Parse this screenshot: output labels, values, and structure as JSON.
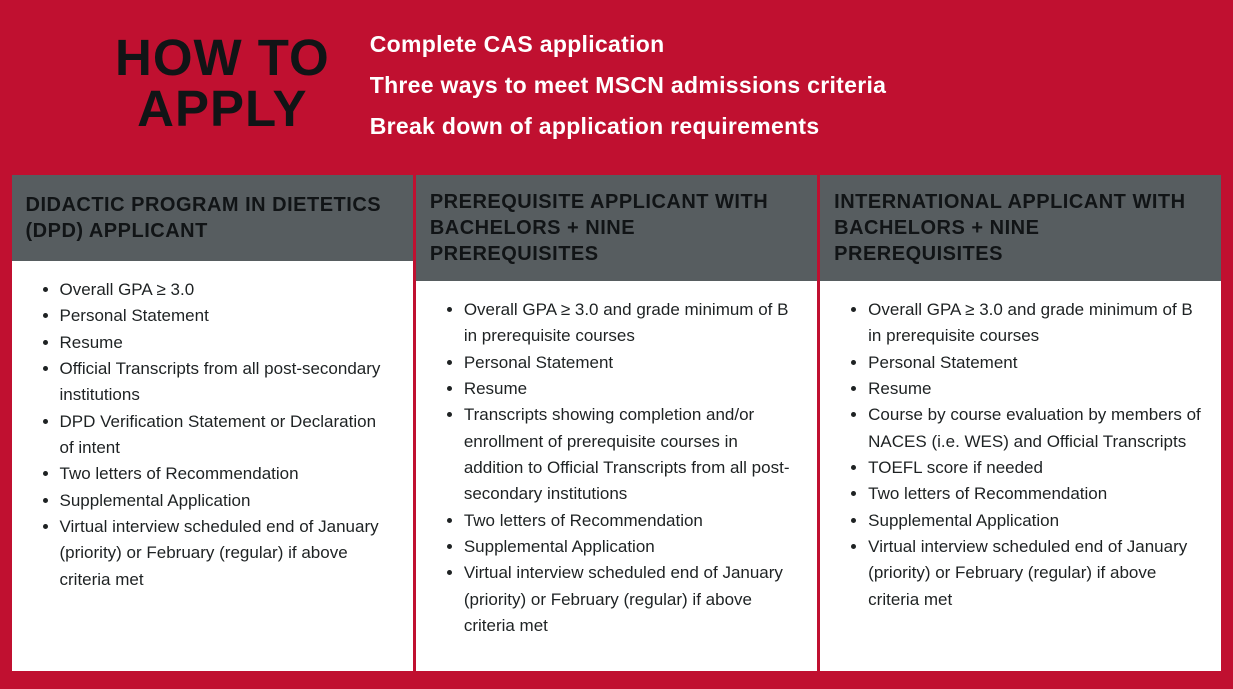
{
  "colors": {
    "red": "#c01030",
    "darkGray": "#575d60",
    "black": "#111416",
    "white": "#ffffff",
    "bodyText": "#1e2223"
  },
  "typography": {
    "title_fontsize": 51,
    "subtitle_fontsize": 23,
    "colheader_fontsize": 20,
    "body_fontsize": 17
  },
  "header": {
    "title_line1": "HOW TO",
    "title_line2": "APPLY",
    "subtitles": [
      "Complete CAS application",
      "Three ways to meet MSCN admissions criteria",
      "Break down of application requirements"
    ]
  },
  "columns": [
    {
      "title": "DIDACTIC PROGRAM IN DIETETICS (DPD) APPLICANT",
      "items": [
        "Overall GPA ≥ 3.0",
        "Personal Statement",
        "Resume",
        "Official Transcripts from all post-secondary institutions",
        "DPD Verification Statement or Declaration of intent",
        "Two letters of Recommendation",
        "Supplemental Application",
        "Virtual interview scheduled end of January (priority) or February (regular) if above criteria met"
      ]
    },
    {
      "title": "PREREQUISITE APPLICANT WITH BACHELORS + NINE PREREQUISITES",
      "items": [
        "Overall GPA ≥ 3.0 and grade minimum of B in prerequisite courses",
        "Personal Statement",
        "Resume",
        "Transcripts showing completion and/or enrollment of prerequisite courses in addition to Official Transcripts from all post-secondary institutions",
        "Two letters of Recommendation",
        "Supplemental Application",
        "Virtual interview scheduled end of January (priority) or February (regular) if above criteria met"
      ]
    },
    {
      "title": "INTERNATIONAL APPLICANT WITH BACHELORS + NINE PREREQUISITES",
      "items": [
        "Overall GPA ≥ 3.0 and grade minimum of B in prerequisite courses",
        "Personal Statement",
        "Resume",
        "Course by course evaluation by members of NACES (i.e. WES) and Official Transcripts",
        "TOEFL score if needed",
        "Two letters of Recommendation",
        "Supplemental Application",
        "Virtual interview scheduled end of January (priority) or February (regular) if above criteria met"
      ]
    }
  ]
}
